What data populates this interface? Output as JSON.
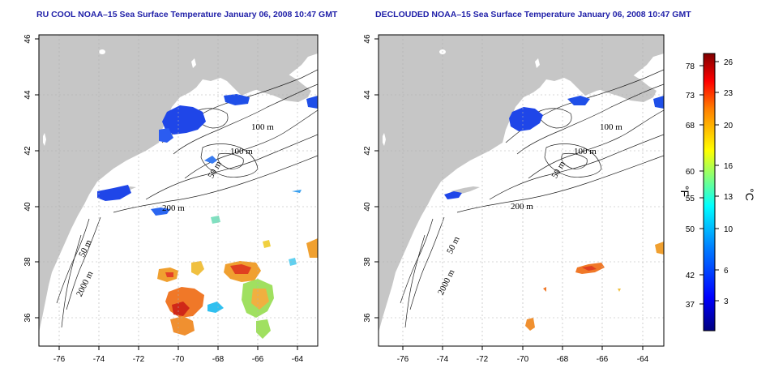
{
  "panels": [
    {
      "id": "left",
      "title": "RU COOL NOAA–15 Sea Surface Temperature January 06, 2008 10:47 GMT",
      "x_ticks": [
        "-76",
        "-74",
        "-72",
        "-70",
        "-68",
        "-66",
        "-64"
      ],
      "y_ticks": [
        "36",
        "38",
        "40",
        "42",
        "44",
        "46"
      ],
      "contour_labels": [
        "100 m",
        "100 m",
        "50 m",
        "200 m",
        "50 m",
        "2000 m"
      ]
    },
    {
      "id": "right",
      "title": "DECLOUDED NOAA–15 Sea Surface Temperature January 06, 2008 10:47 GMT",
      "x_ticks": [
        "-76",
        "-74",
        "-72",
        "-70",
        "-68",
        "-66",
        "-64"
      ],
      "y_ticks": [
        "36",
        "38",
        "40",
        "42",
        "44",
        "46"
      ],
      "contour_labels": [
        "100 m",
        "100 m",
        "50 m",
        "200 m",
        "50 m",
        "2000 m"
      ]
    }
  ],
  "colorbar": {
    "fahrenheit_ticks": [
      "78",
      "73",
      "68",
      "60",
      "55",
      "50",
      "42",
      "37"
    ],
    "celsius_ticks": [
      "26",
      "23",
      "20",
      "16",
      "13",
      "10",
      "6",
      "3"
    ],
    "fahrenheit_unit": "°F",
    "celsius_unit": "°C",
    "range_c": [
      0,
      27
    ],
    "colors": [
      "#00007f",
      "#0000ff",
      "#007fff",
      "#00ffff",
      "#7fff7f",
      "#ffff00",
      "#ff7f00",
      "#ff0000",
      "#7f0000"
    ]
  },
  "map": {
    "land_color": "#c6c6c6",
    "ocean_color": "#ffffff",
    "lon_range": [
      -77,
      -63
    ],
    "lat_range": [
      35,
      46
    ]
  }
}
